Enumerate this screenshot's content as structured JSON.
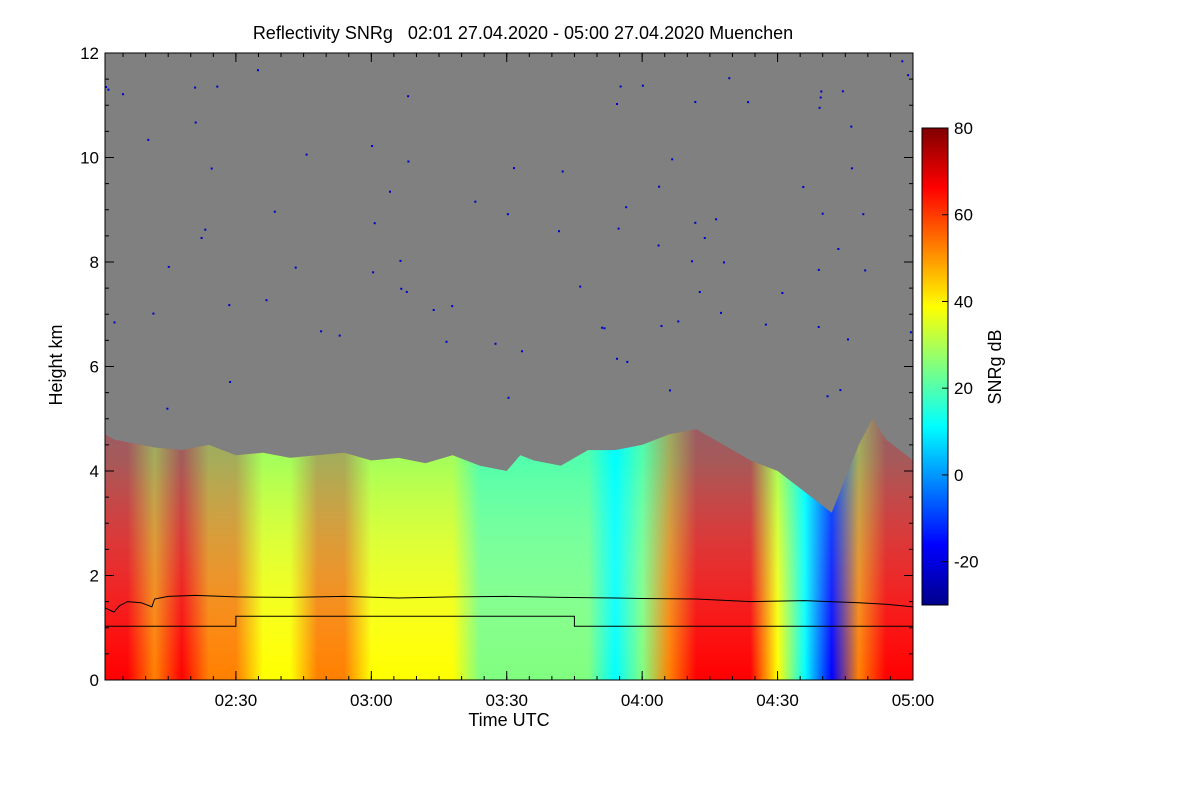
{
  "chart_data": {
    "type": "heatmap",
    "title": "Reflectivity SNRg   02:01 27.04.2020 - 05:00 27.04.2020 Muenchen",
    "xlabel": "Time UTC",
    "ylabel": "Height km",
    "x_range_hours": [
      2.0167,
      5.0
    ],
    "y_range_km": [
      0,
      12
    ],
    "x_ticks": [
      {
        "value": 2.5,
        "label": "02:30"
      },
      {
        "value": 3.0,
        "label": "03:00"
      },
      {
        "value": 3.5,
        "label": "03:30"
      },
      {
        "value": 4.0,
        "label": "04:00"
      },
      {
        "value": 4.5,
        "label": "04:30"
      },
      {
        "value": 5.0,
        "label": "05:00"
      }
    ],
    "y_ticks": [
      {
        "value": 0,
        "label": "0"
      },
      {
        "value": 2,
        "label": "2"
      },
      {
        "value": 4,
        "label": "4"
      },
      {
        "value": 6,
        "label": "6"
      },
      {
        "value": 8,
        "label": "8"
      },
      {
        "value": 10,
        "label": "10"
      },
      {
        "value": 12,
        "label": "12"
      }
    ],
    "colorbar": {
      "label": "SNRg dB",
      "range": [
        -30,
        80
      ],
      "ticks": [
        {
          "value": -20,
          "label": "-20"
        },
        {
          "value": 0,
          "label": "0"
        },
        {
          "value": 20,
          "label": "20"
        },
        {
          "value": 40,
          "label": "40"
        },
        {
          "value": 60,
          "label": "60"
        },
        {
          "value": 80,
          "label": "80"
        }
      ],
      "colors": [
        "#00008b",
        "#0000ff",
        "#0080ff",
        "#00ffff",
        "#80ff80",
        "#ffff00",
        "#ff8000",
        "#ff0000",
        "#800000"
      ]
    },
    "no_signal_color": "#808080",
    "signal_top_km": [
      [
        2.017,
        4.7
      ],
      [
        2.05,
        4.6
      ],
      [
        2.1,
        4.55
      ],
      [
        2.2,
        4.45
      ],
      [
        2.3,
        4.4
      ],
      [
        2.4,
        4.5
      ],
      [
        2.5,
        4.3
      ],
      [
        2.6,
        4.35
      ],
      [
        2.7,
        4.25
      ],
      [
        2.8,
        4.3
      ],
      [
        2.9,
        4.35
      ],
      [
        3.0,
        4.2
      ],
      [
        3.1,
        4.25
      ],
      [
        3.2,
        4.15
      ],
      [
        3.3,
        4.3
      ],
      [
        3.4,
        4.1
      ],
      [
        3.5,
        4.0
      ],
      [
        3.55,
        4.3
      ],
      [
        3.6,
        4.2
      ],
      [
        3.7,
        4.1
      ],
      [
        3.8,
        4.4
      ],
      [
        3.9,
        4.4
      ],
      [
        4.0,
        4.5
      ],
      [
        4.1,
        4.7
      ],
      [
        4.2,
        4.8
      ],
      [
        4.3,
        4.5
      ],
      [
        4.4,
        4.2
      ],
      [
        4.5,
        4.0
      ],
      [
        4.6,
        3.6
      ],
      [
        4.7,
        3.2
      ],
      [
        4.8,
        4.5
      ],
      [
        4.85,
        5.0
      ],
      [
        4.9,
        4.6
      ],
      [
        5.0,
        4.2
      ]
    ],
    "snr_columns_db": [
      [
        2.02,
        70
      ],
      [
        2.1,
        62
      ],
      [
        2.2,
        58
      ],
      [
        2.3,
        60
      ],
      [
        2.4,
        55
      ],
      [
        2.5,
        52
      ],
      [
        2.6,
        45
      ],
      [
        2.7,
        38
      ],
      [
        2.8,
        50
      ],
      [
        2.9,
        46
      ],
      [
        3.0,
        40
      ],
      [
        3.1,
        35
      ],
      [
        3.2,
        38
      ],
      [
        3.3,
        34
      ],
      [
        3.4,
        30
      ],
      [
        3.5,
        28
      ],
      [
        3.6,
        25
      ],
      [
        3.7,
        26
      ],
      [
        3.8,
        22
      ],
      [
        3.9,
        18
      ],
      [
        4.0,
        20
      ],
      [
        4.1,
        55
      ],
      [
        4.2,
        68
      ],
      [
        4.3,
        70
      ],
      [
        4.4,
        60
      ],
      [
        4.5,
        40
      ],
      [
        4.6,
        5
      ],
      [
        4.7,
        -10
      ],
      [
        4.8,
        50
      ],
      [
        4.9,
        72
      ],
      [
        5.0,
        65
      ]
    ],
    "series": [
      {
        "name": "boundary-layer-upper",
        "color": "#000000",
        "points": [
          [
            2.017,
            1.38
          ],
          [
            2.05,
            1.3
          ],
          [
            2.07,
            1.42
          ],
          [
            2.1,
            1.5
          ],
          [
            2.15,
            1.48
          ],
          [
            2.19,
            1.4
          ],
          [
            2.2,
            1.55
          ],
          [
            2.25,
            1.6
          ],
          [
            2.35,
            1.62
          ],
          [
            2.5,
            1.59
          ],
          [
            2.7,
            1.58
          ],
          [
            2.9,
            1.6
          ],
          [
            3.1,
            1.57
          ],
          [
            3.3,
            1.59
          ],
          [
            3.5,
            1.6
          ],
          [
            3.7,
            1.58
          ],
          [
            3.9,
            1.57
          ],
          [
            4.0,
            1.56
          ],
          [
            4.2,
            1.55
          ],
          [
            4.4,
            1.5
          ],
          [
            4.6,
            1.52
          ],
          [
            4.8,
            1.48
          ],
          [
            4.9,
            1.45
          ],
          [
            5.0,
            1.4
          ]
        ]
      },
      {
        "name": "boundary-layer-lower",
        "color": "#000000",
        "points": [
          [
            2.017,
            1.03
          ],
          [
            2.5,
            1.03
          ],
          [
            2.5,
            1.22
          ],
          [
            3.75,
            1.22
          ],
          [
            3.75,
            1.03
          ],
          [
            5.0,
            1.03
          ]
        ]
      }
    ]
  }
}
